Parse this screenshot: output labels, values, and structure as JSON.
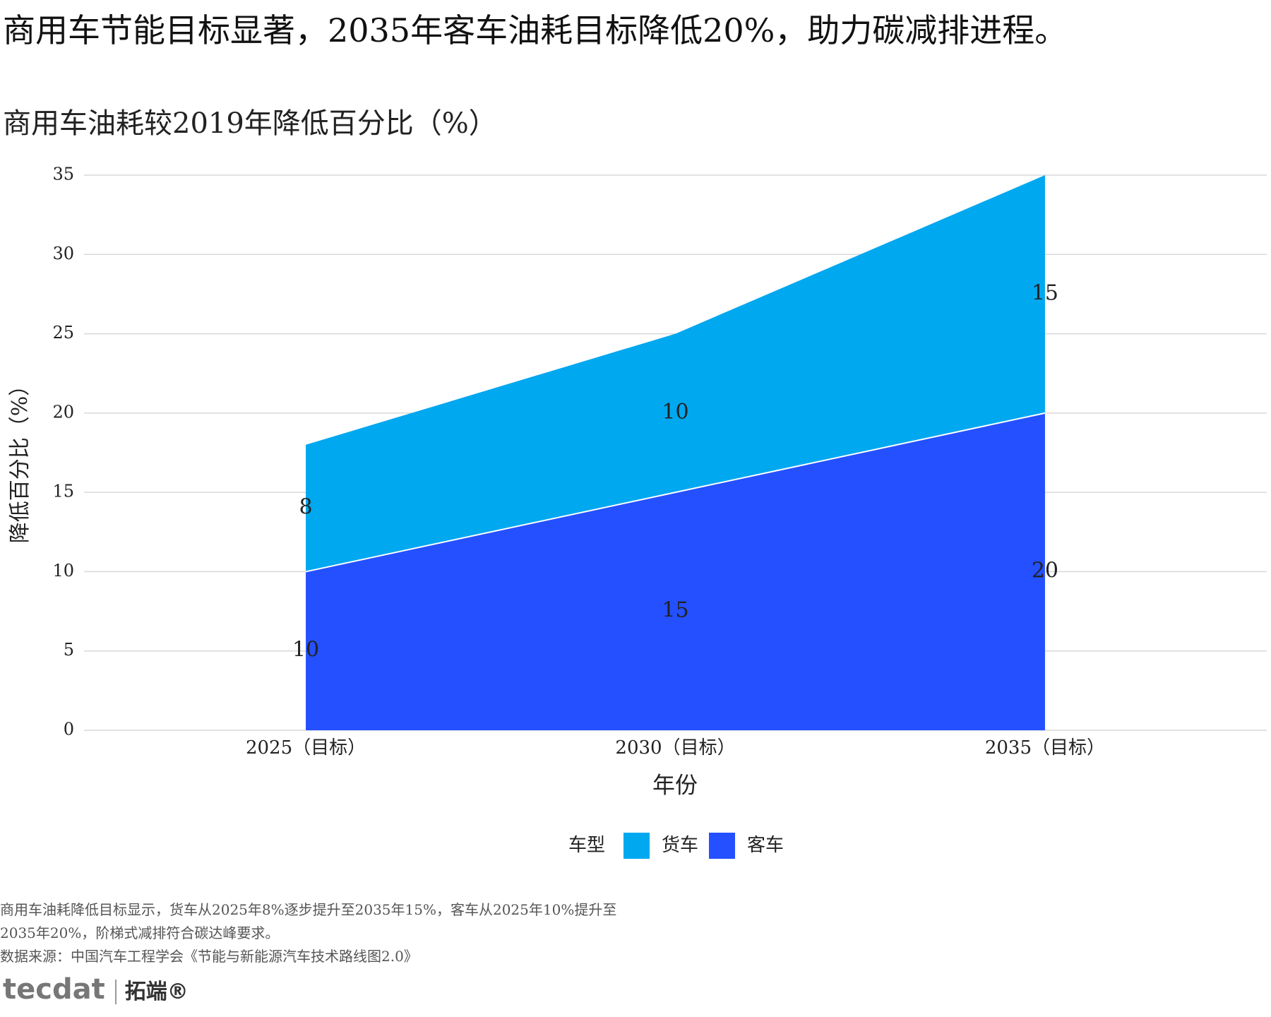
{
  "chart_data": {
    "type": "area",
    "stacked": true,
    "title": "商用车节能目标显著，2035年客车油耗目标降低20%，助力碳减排进程。",
    "subtitle": "商用车油耗较2019年降低百分比（%）",
    "categories": [
      "2025（目标）",
      "2030（目标）",
      "2035（目标）"
    ],
    "series": [
      {
        "name": "客车",
        "color": "#2450ff",
        "values": [
          10,
          15,
          20
        ]
      },
      {
        "name": "货车",
        "color": "#00a8f0",
        "values": [
          8,
          10,
          15
        ]
      }
    ],
    "xlabel": "年份",
    "ylabel": "降低百分比（%）",
    "ylim": [
      0,
      35
    ],
    "yticks": [
      0,
      5,
      10,
      15,
      20,
      25,
      30,
      35
    ],
    "grid": true,
    "legend_title": "车型",
    "legend_position": "bottom"
  },
  "footer": {
    "note": "商用车油耗降低目标显示，货车从2025年8%逐步提升至2035年15%，客车从2025年10%提升至2035年20%，阶梯式减排符合碳达峰要求。",
    "source": "数据来源：中国汽车工程学会《节能与新能源汽车技术路线图2.0》",
    "logo": "tecdat",
    "logo_cn": "拓端®"
  }
}
